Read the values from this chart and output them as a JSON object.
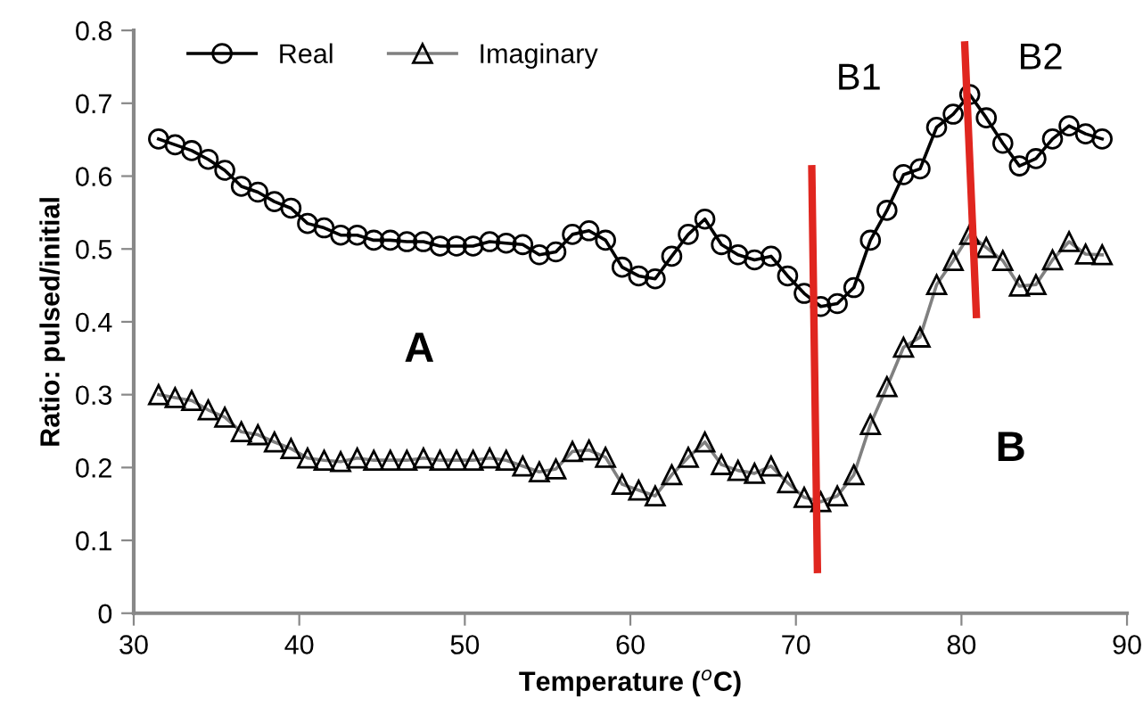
{
  "chart_data": {
    "type": "line",
    "xlabel": "Temperature ($^{o}$C)",
    "ylabel": "Ratio: pulsed/initial",
    "xlim": [
      30,
      90
    ],
    "xticks": [
      30,
      40,
      50,
      60,
      70,
      80,
      90
    ],
    "ylim": [
      0,
      0.8
    ],
    "yticks": [
      0,
      0.1,
      0.2,
      0.3,
      0.4,
      0.5,
      0.6,
      0.7,
      0.8
    ],
    "grid": false,
    "legend": "top left",
    "line_style": "solid",
    "series": [
      {
        "name": "Real",
        "color": "#000000",
        "marker": "circle",
        "x": [
          31.5,
          32.5,
          33.5,
          34.5,
          35.5,
          36.5,
          37.5,
          38.5,
          39.5,
          40.5,
          41.5,
          42.5,
          43.5,
          44.5,
          45.5,
          46.5,
          47.5,
          48.5,
          49.5,
          50.5,
          51.5,
          52.5,
          53.5,
          54.5,
          55.5,
          56.5,
          57.5,
          58.5,
          59.5,
          60.5,
          61.5,
          62.5,
          63.5,
          64.5,
          65.5,
          66.5,
          67.5,
          68.5,
          69.5,
          70.5,
          71.5,
          72.5,
          73.5,
          74.5,
          75.5,
          76.5,
          77.5,
          78.5,
          79.5,
          80.5,
          81.5,
          82.5,
          83.5,
          84.5,
          85.5,
          86.5,
          87.5,
          88.5
        ],
        "values": [
          0.651,
          0.643,
          0.635,
          0.623,
          0.608,
          0.586,
          0.578,
          0.565,
          0.556,
          0.535,
          0.529,
          0.519,
          0.519,
          0.512,
          0.512,
          0.51,
          0.51,
          0.504,
          0.504,
          0.504,
          0.51,
          0.508,
          0.506,
          0.492,
          0.496,
          0.52,
          0.525,
          0.512,
          0.475,
          0.463,
          0.459,
          0.49,
          0.52,
          0.541,
          0.506,
          0.492,
          0.485,
          0.49,
          0.463,
          0.439,
          0.421,
          0.425,
          0.447,
          0.512,
          0.553,
          0.602,
          0.61,
          0.667,
          0.685,
          0.712,
          0.68,
          0.645,
          0.614,
          0.624,
          0.651,
          0.669,
          0.658,
          0.651
        ]
      },
      {
        "name": "Imaginary",
        "color": "#808080",
        "marker": "triangle",
        "x": [
          31.5,
          32.5,
          33.5,
          34.5,
          35.5,
          36.5,
          37.5,
          38.5,
          39.5,
          40.5,
          41.5,
          42.5,
          43.5,
          44.5,
          45.5,
          46.5,
          47.5,
          48.5,
          49.5,
          50.5,
          51.5,
          52.5,
          53.5,
          54.5,
          55.5,
          56.5,
          57.5,
          58.5,
          59.5,
          60.5,
          61.5,
          62.5,
          63.5,
          64.5,
          65.5,
          66.5,
          67.5,
          68.5,
          69.5,
          70.5,
          71.5,
          72.5,
          73.5,
          74.5,
          75.5,
          76.5,
          77.5,
          78.5,
          79.5,
          80.5,
          81.5,
          82.5,
          83.5,
          84.5,
          85.5,
          86.5,
          87.5,
          88.5
        ],
        "values": [
          0.3,
          0.296,
          0.292,
          0.279,
          0.269,
          0.249,
          0.245,
          0.235,
          0.226,
          0.213,
          0.21,
          0.208,
          0.213,
          0.21,
          0.21,
          0.21,
          0.213,
          0.21,
          0.21,
          0.21,
          0.213,
          0.21,
          0.202,
          0.194,
          0.198,
          0.222,
          0.224,
          0.214,
          0.177,
          0.169,
          0.161,
          0.19,
          0.214,
          0.235,
          0.204,
          0.196,
          0.192,
          0.202,
          0.179,
          0.159,
          0.153,
          0.161,
          0.19,
          0.259,
          0.311,
          0.365,
          0.379,
          0.451,
          0.484,
          0.52,
          0.502,
          0.484,
          0.449,
          0.451,
          0.485,
          0.51,
          0.493,
          0.492
        ]
      },
      {
        "color": "#e0261f",
        "marker": "none",
        "x": [
          70.96,
          71.3
        ],
        "values": [
          0.61,
          0.06
        ]
      },
      {
        "color": "#e0261f",
        "marker": "none",
        "x": [
          80.2,
          80.9
        ],
        "values": [
          0.78,
          0.41
        ]
      }
    ],
    "annotations": [
      "A",
      "B",
      "B1",
      "B2"
    ]
  }
}
